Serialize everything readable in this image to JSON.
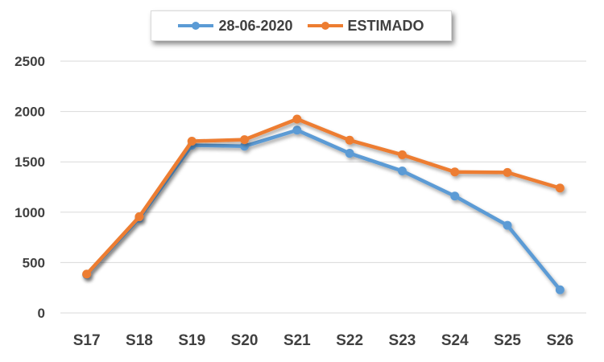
{
  "chart_data": {
    "type": "line",
    "categories": [
      "S17",
      "S18",
      "S19",
      "S20",
      "S21",
      "S22",
      "S23",
      "S24",
      "S25",
      "S26"
    ],
    "series": [
      {
        "name": "28-06-2020",
        "color": "#5b9bd5",
        "values": [
          380,
          940,
          1665,
          1655,
          1815,
          1585,
          1410,
          1160,
          870,
          230
        ]
      },
      {
        "name": "ESTIMADO",
        "color": "#ed7d31",
        "values": [
          385,
          955,
          1705,
          1720,
          1925,
          1715,
          1570,
          1400,
          1395,
          1240
        ]
      }
    ],
    "ylim": [
      0,
      2500
    ],
    "yticks": [
      "0",
      "500",
      "1000",
      "1500",
      "2000",
      "2500"
    ],
    "grid": "horizontal",
    "legend_position": "top-center",
    "axis_color": "#d9d9d9",
    "text_color": "#404040"
  }
}
